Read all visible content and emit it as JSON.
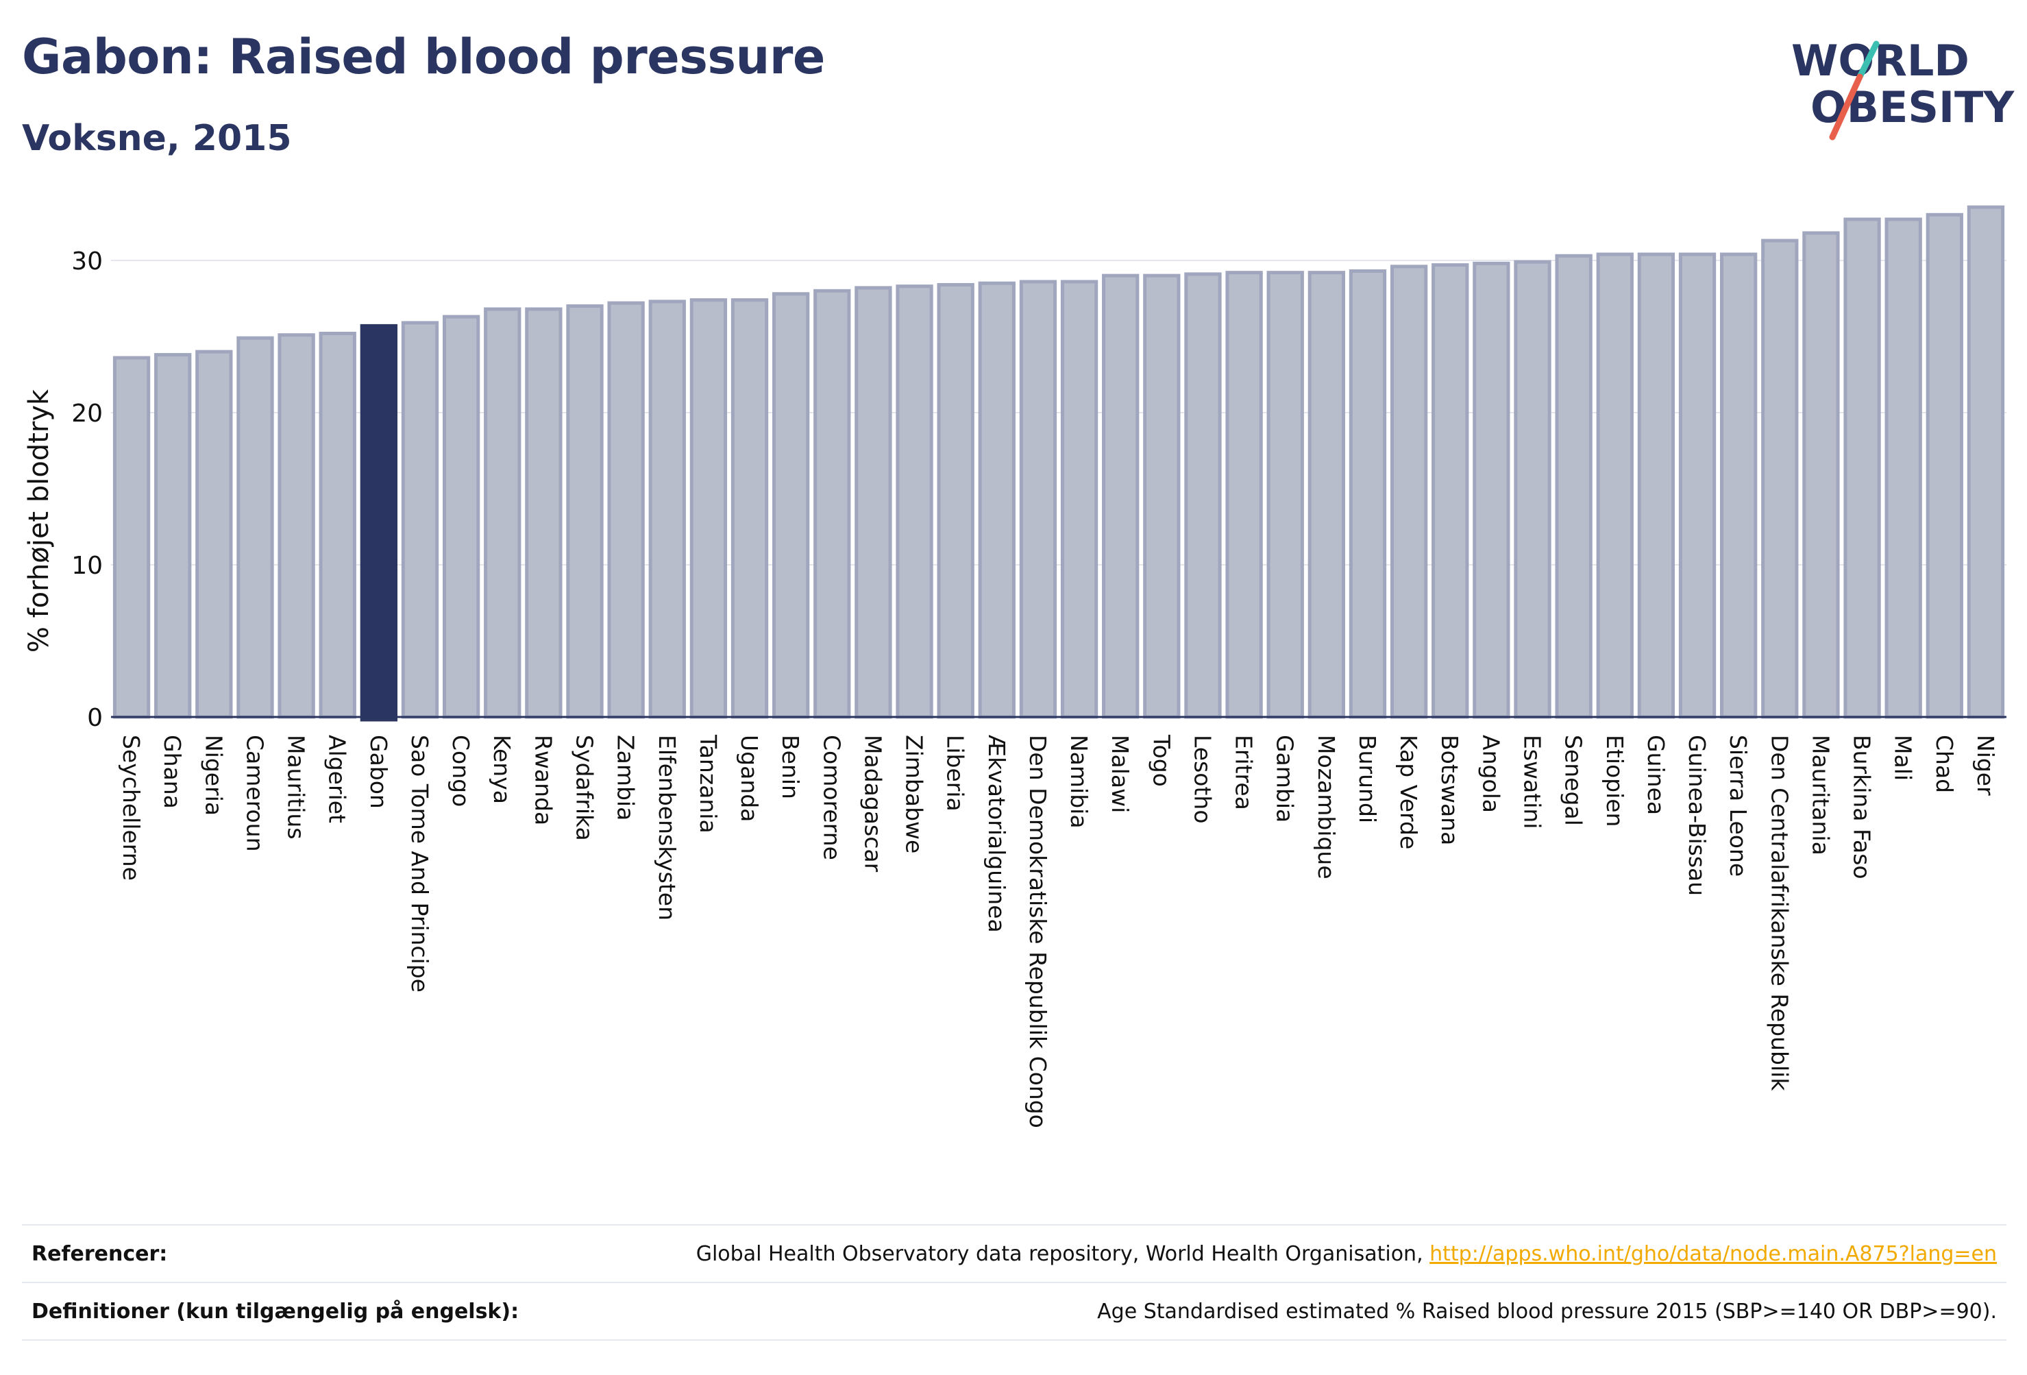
{
  "header": {
    "title": "Gabon: Raised blood pressure",
    "subtitle": "Voksne, 2015"
  },
  "logo": {
    "line1": "WORLD",
    "line2": "OBESITY"
  },
  "colors": {
    "highlight": "#2b3561",
    "bar_fill": "#b8bdcb",
    "bar_stroke": "#a0a6bd",
    "accent_teal": "#3bbfb0",
    "accent_red": "#e8604c"
  },
  "chart_data": {
    "type": "bar",
    "ylabel": "% forhøjet blodtryk",
    "xlabel": "",
    "ylim": [
      0,
      34.5
    ],
    "yticks": [
      0,
      10,
      20,
      30
    ],
    "grid": true,
    "highlight": "Gabon",
    "categories": [
      "Seychellerne",
      "Ghana",
      "Nigeria",
      "Cameroun",
      "Mauritius",
      "Algeriet",
      "Gabon",
      "Sao Tome And Principe",
      "Congo",
      "Kenya",
      "Rwanda",
      "Sydafrika",
      "Zambia",
      "Elfenbenskysten",
      "Tanzania",
      "Uganda",
      "Benin",
      "Comorerne",
      "Madagascar",
      "Zimbabwe",
      "Liberia",
      "Ækvatorialguinea",
      "Den Demokratiske Republik Congo",
      "Namibia",
      "Malawi",
      "Togo",
      "Lesotho",
      "Eritrea",
      "Gambia",
      "Mozambique",
      "Burundi",
      "Kap Verde",
      "Botswana",
      "Angola",
      "Eswatini",
      "Senegal",
      "Etiopien",
      "Guinea",
      "Guinea-Bissau",
      "Sierra Leone",
      "Den Centralafrikanske Republik",
      "Mauritania",
      "Burkina Faso",
      "Mali",
      "Chad",
      "Niger"
    ],
    "values": [
      23.6,
      23.8,
      24.0,
      24.9,
      25.1,
      25.2,
      25.7,
      25.9,
      26.3,
      26.8,
      26.8,
      27.0,
      27.2,
      27.3,
      27.4,
      27.4,
      27.8,
      28.0,
      28.2,
      28.3,
      28.4,
      28.5,
      28.6,
      28.6,
      29.0,
      29.0,
      29.1,
      29.2,
      29.2,
      29.2,
      29.3,
      29.6,
      29.7,
      29.8,
      29.9,
      30.3,
      30.4,
      30.4,
      30.4,
      30.4,
      31.3,
      31.8,
      32.7,
      32.7,
      33.0,
      33.5
    ]
  },
  "references": {
    "refs_label": "Referencer:",
    "refs_text": "Global Health Observatory data repository, World Health Organisation, ",
    "refs_link": "http://apps.who.int/gho/data/node.main.A875?lang=en",
    "defs_label": "Definitioner (kun tilgængelig på engelsk):",
    "defs_text": "Age Standardised estimated % Raised blood pressure 2015 (SBP>=140 OR DBP>=90)."
  }
}
